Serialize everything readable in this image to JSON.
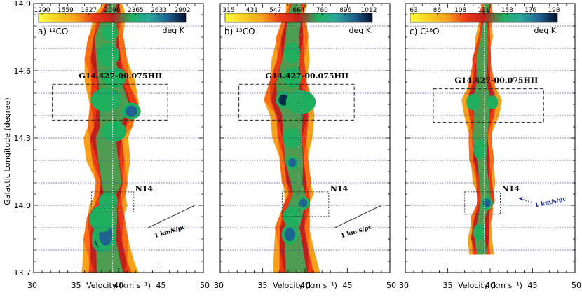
{
  "chart_data": {
    "type": "heatmap",
    "xlabel": "Velocity (km s⁻¹)",
    "ylabel": "Galactic Longitude (degree)",
    "xlim": [
      30,
      50
    ],
    "ylim": [
      13.7,
      14.9
    ],
    "x_ticks": [
      "30",
      "35",
      "40",
      "45",
      "50"
    ],
    "y_ticks": [
      "13.7",
      "14.0",
      "14.3",
      "14.6",
      "14.9"
    ],
    "grid_lines_y": [
      13.8,
      13.9,
      14.0,
      14.1,
      14.2,
      14.3,
      14.4,
      14.5,
      14.6,
      14.7,
      14.8
    ],
    "vertical_reference_velocity": 39.3,
    "colorbar_unit": "deg K",
    "colormap": [
      "#f7a11b",
      "#fb6e14",
      "#ec3a13",
      "#c0201c",
      "#4e9c4f",
      "#1fae5e",
      "#2aa79a",
      "#1f6390",
      "#0a2a4a"
    ],
    "annotations": {
      "region_label": "G14.427-00.075HII",
      "clump_label": "N14",
      "slope_label": "1 km/s/pc"
    },
    "panels": [
      {
        "label": "a)",
        "molecule": "12CO",
        "molecule_display": "¹²CO",
        "colorbar_ticks": [
          "1290",
          "1559",
          "1827",
          "2096",
          "2365",
          "2633",
          "2902"
        ],
        "ridge": [
          [
            13.7,
            39.0,
            6.0
          ],
          [
            13.75,
            38.8,
            5.8
          ],
          [
            13.85,
            38.5,
            5.5
          ],
          [
            13.95,
            38.5,
            5.0
          ],
          [
            14.0,
            38.8,
            4.0
          ],
          [
            14.05,
            39.0,
            3.5
          ],
          [
            14.1,
            39.2,
            4.0
          ],
          [
            14.2,
            38.8,
            4.5
          ],
          [
            14.3,
            38.5,
            5.0
          ],
          [
            14.35,
            39.0,
            5.5
          ],
          [
            14.45,
            39.5,
            6.5
          ],
          [
            14.55,
            39.0,
            5.5
          ],
          [
            14.65,
            38.5,
            5.0
          ],
          [
            14.75,
            38.5,
            4.5
          ],
          [
            14.85,
            39.0,
            3.0
          ],
          [
            14.9,
            39.3,
            2.0
          ]
        ],
        "peaks": [
          [
            13.85,
            37.8,
            1.2,
            0.04,
            "#0a2a4a"
          ],
          [
            13.87,
            38.5,
            1.6,
            0.05,
            "#1f6390"
          ],
          [
            13.94,
            38.0,
            1.8,
            0.04,
            "#1fae5e"
          ],
          [
            14.02,
            38.8,
            1.4,
            0.025,
            "#1fae5e"
          ],
          [
            14.33,
            39.5,
            1.8,
            0.03,
            "#1fae5e"
          ],
          [
            14.42,
            41.5,
            1.4,
            0.025,
            "#1f6390"
          ],
          [
            14.47,
            38.5,
            2.2,
            0.035,
            "#1fae5e"
          ],
          [
            14.57,
            39.5,
            1.8,
            0.03,
            "#1fae5e"
          ],
          [
            14.67,
            38.8,
            1.6,
            0.035,
            "#1fae5e"
          ],
          [
            14.77,
            39.0,
            1.2,
            0.025,
            "#1fae5e"
          ]
        ],
        "region_box": {
          "v": [
            32.2,
            45.8
          ],
          "l": [
            14.38,
            14.54
          ]
        },
        "clump_box": {
          "v": [
            36.8,
            41.8
          ],
          "l": [
            13.97,
            14.06
          ]
        },
        "slope_line": {
          "v": [
            43.5,
            49.0
          ],
          "l": [
            13.9,
            14.0
          ]
        },
        "slope_label_pos": {
          "v": 43.8,
          "l": 13.88
        },
        "slope_style": "black"
      },
      {
        "label": "b)",
        "molecule": "13CO",
        "molecule_display": "¹³CO",
        "colorbar_ticks": [
          "315",
          "431",
          "547",
          "664",
          "780",
          "896",
          "1012"
        ],
        "ridge": [
          [
            13.7,
            39.0,
            4.8
          ],
          [
            13.8,
            38.7,
            4.5
          ],
          [
            13.9,
            38.5,
            4.2
          ],
          [
            14.0,
            39.0,
            3.5
          ],
          [
            14.05,
            39.3,
            3.0
          ],
          [
            14.1,
            39.0,
            3.2
          ],
          [
            14.2,
            38.7,
            3.6
          ],
          [
            14.3,
            38.5,
            4.0
          ],
          [
            14.4,
            38.5,
            5.0
          ],
          [
            14.47,
            38.0,
            6.0
          ],
          [
            14.55,
            38.0,
            5.0
          ],
          [
            14.65,
            38.3,
            4.0
          ],
          [
            14.75,
            38.5,
            3.6
          ],
          [
            14.85,
            38.8,
            2.6
          ],
          [
            14.9,
            39.0,
            1.8
          ]
        ],
        "peaks": [
          [
            13.87,
            38.2,
            1.2,
            0.03,
            "#1f6390"
          ],
          [
            13.95,
            38.5,
            1.4,
            0.03,
            "#1fae5e"
          ],
          [
            14.01,
            39.8,
            0.9,
            0.02,
            "#1f6390"
          ],
          [
            14.19,
            38.5,
            0.9,
            0.02,
            "#1f6390"
          ],
          [
            14.3,
            38.5,
            1.4,
            0.03,
            "#1fae5e"
          ],
          [
            14.47,
            37.5,
            1.2,
            0.025,
            "#0a2a4a"
          ],
          [
            14.46,
            39.5,
            2.2,
            0.035,
            "#1fae5e"
          ],
          [
            14.57,
            38.5,
            1.4,
            0.03,
            "#1fae5e"
          ],
          [
            14.68,
            38.5,
            1.2,
            0.03,
            "#1fae5e"
          ]
        ],
        "region_box": {
          "v": [
            32.2,
            45.8
          ],
          "l": [
            14.38,
            14.54
          ]
        },
        "clump_box": {
          "v": [
            37.3,
            42.8
          ],
          "l": [
            13.95,
            14.06
          ]
        },
        "slope_line": {
          "v": [
            43.5,
            49.0
          ],
          "l": [
            13.9,
            14.0
          ]
        },
        "slope_label_pos": {
          "v": 43.8,
          "l": 13.88
        },
        "slope_style": "black"
      },
      {
        "label": "c)",
        "molecule": "C18O",
        "molecule_display": "C¹⁸O",
        "colorbar_ticks": [
          "63",
          "86",
          "108",
          "131",
          "153",
          "176",
          "198"
        ],
        "ridge": [
          [
            13.78,
            39.0,
            2.2
          ],
          [
            13.85,
            38.8,
            2.6
          ],
          [
            13.95,
            39.0,
            2.4
          ],
          [
            14.02,
            39.5,
            2.0
          ],
          [
            14.1,
            39.3,
            2.2
          ],
          [
            14.2,
            39.0,
            2.6
          ],
          [
            14.3,
            38.8,
            2.8
          ],
          [
            14.4,
            39.0,
            3.4
          ],
          [
            14.47,
            39.0,
            4.5
          ],
          [
            14.55,
            39.0,
            3.0
          ],
          [
            14.65,
            39.0,
            2.2
          ],
          [
            14.75,
            39.3,
            1.6
          ],
          [
            14.85,
            39.5,
            1.2
          ],
          [
            14.9,
            39.6,
            1.0
          ]
        ],
        "peaks": [
          [
            13.88,
            38.7,
            0.9,
            0.025,
            "#1fae5e"
          ],
          [
            14.01,
            39.6,
            0.9,
            0.02,
            "#1f6390"
          ],
          [
            14.25,
            38.8,
            1.0,
            0.03,
            "#1fae5e"
          ],
          [
            14.46,
            38.0,
            1.0,
            0.025,
            "#1fae5e"
          ],
          [
            14.46,
            40.3,
            0.8,
            0.02,
            "#1fae5e"
          ]
        ],
        "region_box": {
          "v": [
            33.3,
            46.3
          ],
          "l": [
            14.37,
            14.52
          ]
        },
        "clump_box": {
          "v": [
            37.0,
            41.2
          ],
          "l": [
            13.96,
            14.06
          ]
        },
        "slope_line": {
          "v": [
            40.0,
            43.2
          ],
          "l": [
            13.99,
            14.03
          ]
        },
        "slope_label_pos": {
          "v": 45.2,
          "l": 14.01
        },
        "slope_style": "blue"
      }
    ]
  }
}
